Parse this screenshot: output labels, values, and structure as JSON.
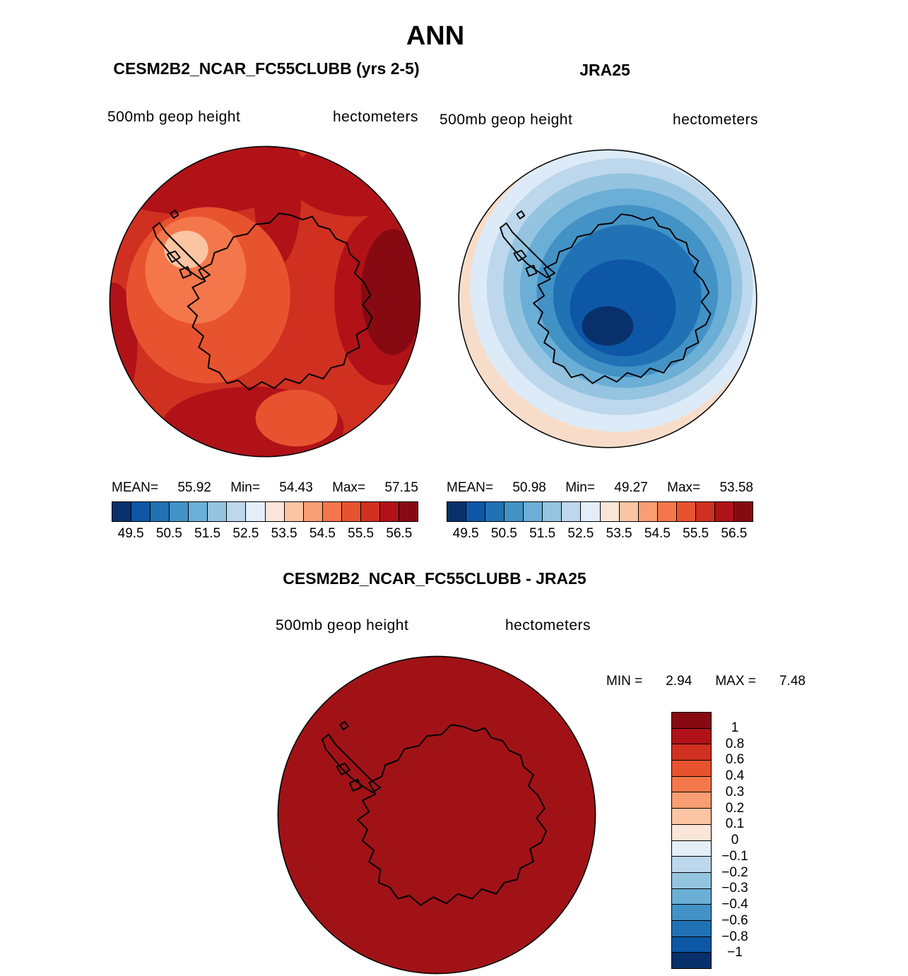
{
  "title": "ANN",
  "panels": [
    {
      "title": "CESM2B2_NCAR_FC55CLUBB (yrs 2-5)",
      "field": "500mb geop height",
      "units": "hectometers",
      "stats": {
        "mean_label": "MEAN=",
        "mean": "55.92",
        "min_label": "Min=",
        "min": "54.43",
        "max_label": "Max=",
        "max": "57.15"
      },
      "colorbar_ticks": [
        "49.5",
        "50.5",
        "51.5",
        "52.5",
        "53.5",
        "54.5",
        "55.5",
        "56.5"
      ]
    },
    {
      "title": "JRA25",
      "field": "500mb geop height",
      "units": "hectometers",
      "stats": {
        "mean_label": "MEAN=",
        "mean": "50.98",
        "min_label": "Min=",
        "min": "49.27",
        "max_label": "Max=",
        "max": "53.58"
      },
      "colorbar_ticks": [
        "49.5",
        "50.5",
        "51.5",
        "52.5",
        "53.5",
        "54.5",
        "55.5",
        "56.5"
      ]
    }
  ],
  "diff": {
    "title": "CESM2B2_NCAR_FC55CLUBB - JRA25",
    "field": "500mb geop height",
    "units": "hectometers",
    "min_label": "MIN =",
    "min": "2.94",
    "max_label": "MAX =",
    "max": "7.48",
    "colorbar_labels": [
      "1",
      "0.8",
      "0.6",
      "0.4",
      "0.3",
      "0.2",
      "0.1",
      "0",
      "−0.1",
      "−0.2",
      "−0.3",
      "−0.4",
      "−0.6",
      "−0.8",
      "−1"
    ]
  },
  "colors": {
    "diverging16": [
      "#08306b",
      "#0d57a6",
      "#2171b5",
      "#4292c6",
      "#6baed6",
      "#94c4df",
      "#bdd7ec",
      "#e3eef8",
      "#fbe5d8",
      "#fbc4a2",
      "#f99d72",
      "#f4774b",
      "#e8532f",
      "#d03020",
      "#b01218",
      "#870a12"
    ],
    "diff16": [
      "#870a12",
      "#b01218",
      "#d03020",
      "#e8532f",
      "#f4774b",
      "#f99d72",
      "#fbc4a2",
      "#fbe5d8",
      "#e3eef8",
      "#bdd7ec",
      "#94c4df",
      "#6baed6",
      "#4292c6",
      "#2171b5",
      "#0d57a6",
      "#08306b"
    ]
  },
  "chart_data": [
    {
      "type": "heatmap",
      "subtype": "filled-contour-south-polar-map",
      "title": "CESM2B2_NCAR_FC55CLUBB (yrs 2-5)",
      "variable": "500mb geop height",
      "units": "hectometers",
      "projection": "south-polar-stereographic (Antarctica)",
      "mean": 55.92,
      "min": 54.43,
      "max": 57.15,
      "contour_levels": [
        49,
        49.5,
        50,
        50.5,
        51,
        51.5,
        52,
        52.5,
        53,
        53.5,
        54,
        54.5,
        55,
        55.5,
        56,
        56.5,
        57
      ],
      "colorbar_tick_labels": [
        49.5,
        50.5,
        51.5,
        52.5,
        53.5,
        54.5,
        55.5,
        56.5
      ],
      "palette": "16-class blue-to-red diverging",
      "legend_position": "below",
      "note": "field sits in the red (55-57) range; lightest patch over West Antarctica, darkest reds along right limb and bottom"
    },
    {
      "type": "heatmap",
      "subtype": "filled-contour-south-polar-map",
      "title": "JRA25",
      "variable": "500mb geop height",
      "units": "hectometers",
      "projection": "south-polar-stereographic (Antarctica)",
      "mean": 50.98,
      "min": 49.27,
      "max": 53.58,
      "contour_levels": [
        49,
        49.5,
        50,
        50.5,
        51,
        51.5,
        52,
        52.5,
        53,
        53.5,
        54,
        54.5,
        55,
        55.5,
        56,
        56.5,
        57
      ],
      "colorbar_tick_labels": [
        49.5,
        50.5,
        51.5,
        52.5,
        53.5,
        54.5,
        55.5,
        56.5
      ],
      "palette": "16-class blue-to-red diverging",
      "legend_position": "below",
      "note": "field sits in the blue (49-53.5) range; darkest blue minimum near the pole, pale cream ring along lower-left rim"
    },
    {
      "type": "heatmap",
      "subtype": "difference-south-polar-map",
      "title": "CESM2B2_NCAR_FC55CLUBB - JRA25",
      "variable": "500mb geop height",
      "units": "hectometers",
      "projection": "south-polar-stereographic (Antarctica)",
      "min": 2.94,
      "max": 7.48,
      "contour_levels": [
        -1,
        -0.8,
        -0.6,
        -0.4,
        -0.3,
        -0.2,
        -0.1,
        0,
        0.1,
        0.2,
        0.3,
        0.4,
        0.6,
        0.8,
        1
      ],
      "palette": "16-class red-to-blue diverging (vertical legend, red on top)",
      "legend_position": "right",
      "note": "entire field exceeds +1, rendered as uniform dark red"
    }
  ]
}
